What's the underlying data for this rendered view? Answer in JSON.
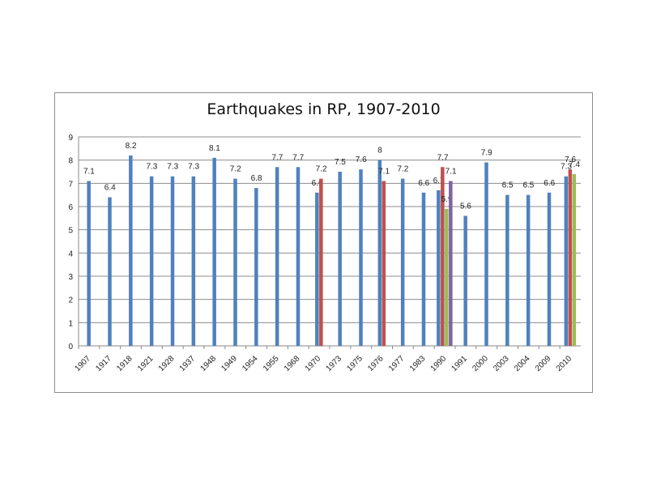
{
  "chart_data": {
    "type": "bar",
    "title": "Earthquakes in RP, 1907-2010",
    "xlabel": "",
    "ylabel": "",
    "ylim": [
      0,
      9
    ],
    "yticks": [
      0,
      1,
      2,
      3,
      4,
      5,
      6,
      7,
      8,
      9
    ],
    "grid": true,
    "legend": "none",
    "categories": [
      "1907",
      "1917",
      "1918",
      "1921",
      "1928",
      "1937",
      "1948",
      "1949",
      "1954",
      "1955",
      "1968",
      "1970",
      "1973",
      "1975",
      "1976",
      "1977",
      "1983",
      "1990",
      "1991",
      "2000",
      "2003",
      "2004",
      "2009",
      "2010"
    ],
    "series": [
      {
        "color": "#4f81bd",
        "values": [
          7.1,
          6.4,
          8.2,
          7.3,
          7.3,
          7.3,
          8.1,
          7.2,
          6.8,
          7.7,
          7.7,
          6.6,
          7.5,
          7.6,
          8,
          7.2,
          6.6,
          6.7,
          5.6,
          7.9,
          6.5,
          6.5,
          6.6,
          7.3
        ]
      },
      {
        "color": "#c0504d",
        "values": [
          null,
          null,
          null,
          null,
          null,
          null,
          null,
          null,
          null,
          null,
          null,
          7.2,
          null,
          null,
          7.1,
          null,
          null,
          7.7,
          null,
          null,
          null,
          null,
          null,
          7.6
        ]
      },
      {
        "color": "#9bbb59",
        "values": [
          null,
          null,
          null,
          null,
          null,
          null,
          null,
          null,
          null,
          null,
          null,
          null,
          null,
          null,
          null,
          null,
          null,
          5.9,
          null,
          null,
          null,
          null,
          null,
          7.4
        ]
      },
      {
        "color": "#8064a2",
        "values": [
          null,
          null,
          null,
          null,
          null,
          null,
          null,
          null,
          null,
          null,
          null,
          null,
          null,
          null,
          null,
          null,
          null,
          7.1,
          null,
          null,
          null,
          null,
          null,
          null
        ]
      }
    ]
  }
}
